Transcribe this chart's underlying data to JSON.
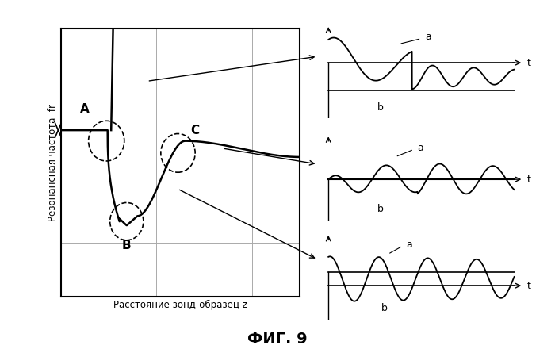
{
  "ylabel": "Резонансная частота  fr",
  "xlabel": "Расстояние зонд-образец z",
  "bg_color": "#ffffff",
  "text_color": "#000000",
  "grid_color": "#aaaaaa",
  "label_A": "A",
  "label_B": "B",
  "label_C": "C",
  "label_a": "a",
  "label_b": "b",
  "label_t": "t",
  "fig_label": "ФИГ. 9"
}
